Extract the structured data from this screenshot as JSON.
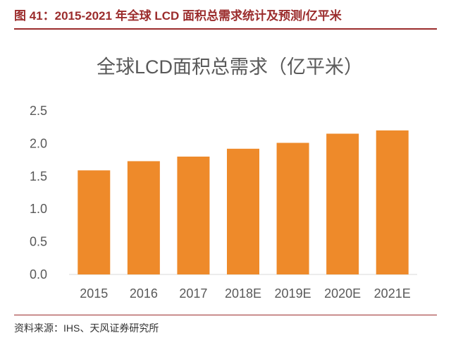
{
  "figure": {
    "title": "图 41：2015-2021 年全球 LCD 面积总需求统计及预测/亿平米",
    "source": "资料来源：IHS、天风证券研究所"
  },
  "colors": {
    "bar": "#ee8a2a",
    "accent": "#9b2c2c",
    "text": "#595959",
    "axis": "#d9d9d9"
  },
  "chart_data": {
    "type": "bar",
    "title": "全球LCD面积总需求（亿平米）",
    "categories": [
      "2015",
      "2016",
      "2017",
      "2018E",
      "2019E",
      "2020E",
      "2021E"
    ],
    "values": [
      1.59,
      1.73,
      1.8,
      1.92,
      2.01,
      2.15,
      2.2
    ],
    "ylim": [
      0,
      2.5
    ],
    "yticks": [
      "0.0",
      "0.5",
      "1.0",
      "1.5",
      "2.0",
      "2.5"
    ],
    "grid": false,
    "legend": "none",
    "xlabel": "",
    "ylabel": ""
  }
}
